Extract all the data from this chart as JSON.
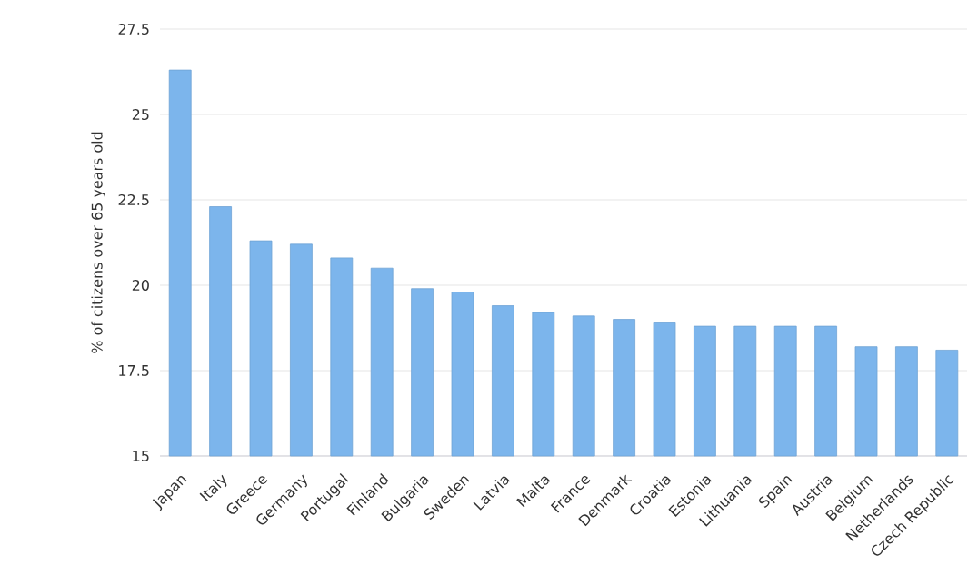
{
  "chart_data": {
    "type": "bar",
    "ylabel": "% of citizens over 65 years old",
    "categories": [
      "Japan",
      "Italy",
      "Greece",
      "Germany",
      "Portugal",
      "Finland",
      "Bulgaria",
      "Sweden",
      "Latvia",
      "Malta",
      "France",
      "Denmark",
      "Croatia",
      "Estonia",
      "Lithuania",
      "Spain",
      "Austria",
      "Belgium",
      "Netherlands",
      "Czech Republic"
    ],
    "values": [
      26.3,
      22.3,
      21.3,
      21.2,
      20.8,
      20.5,
      19.9,
      19.8,
      19.4,
      19.2,
      19.1,
      19.0,
      18.9,
      18.8,
      18.8,
      18.8,
      18.8,
      18.2,
      18.2,
      18.1
    ],
    "color": "#7cb5ec",
    "ylim": [
      15,
      27.5
    ],
    "yticks": [
      15,
      17.5,
      20,
      22.5,
      25,
      27.5
    ],
    "grid": "y"
  }
}
